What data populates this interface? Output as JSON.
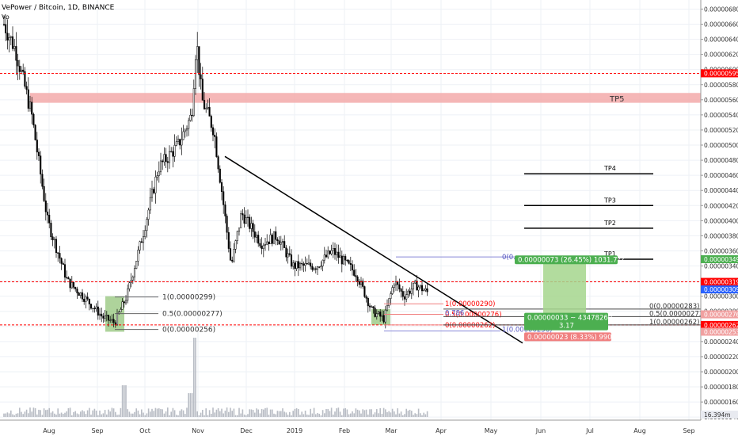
{
  "header": {
    "symbol_title": "VePower / Bitcoin, 1D, BINANCE",
    "sub": "Vo"
  },
  "chart_data": {
    "type": "candlestick",
    "title": "VePower / Bitcoin, 1D, BINANCE",
    "x_ticks": [
      "Aug",
      "Sep",
      "Oct",
      "Nov",
      "Dec",
      "2019",
      "Feb",
      "Mar",
      "Apr",
      "May",
      "Jun",
      "Jul",
      "Aug",
      "Sep"
    ],
    "y_ticks": [
      "0.00000680",
      "0.00000660",
      "0.00000640",
      "0.00000620",
      "0.00000600",
      "0.00000580",
      "0.00000560",
      "0.00000540",
      "0.00000520",
      "0.00000500",
      "0.00000480",
      "0.00000460",
      "0.00000440",
      "0.00000420",
      "0.00000400",
      "0.00000380",
      "0.00000360",
      "0.00000340",
      "0.00000320",
      "0.00000300",
      "0.00000280",
      "0.00000260",
      "0.00000240",
      "0.00000220",
      "0.00000200",
      "0.00000180",
      "0.00000160",
      "0.00000140"
    ],
    "ylim": [
      1.36e-06,
      6.92e-06
    ],
    "volume_label": "16.394m",
    "price_badges": [
      {
        "value": "0.00000595",
        "price": 5.95e-06,
        "color": "#ff0000"
      },
      {
        "value": "0.00000349",
        "price": 3.49e-06,
        "color": "#4caf50"
      },
      {
        "value": "0.00000319",
        "price": 3.19e-06,
        "color": "#ff0000"
      },
      {
        "value": "0.00000309",
        "price": 3.09e-06,
        "color": "#2962ff"
      },
      {
        "value": "0.00000276",
        "price": 2.76e-06,
        "color": "#f0a0a0"
      },
      {
        "value": "0.00000262",
        "price": 2.62e-06,
        "color": "#ff0000"
      },
      {
        "value": "0.00000253",
        "price": 2.53e-06,
        "color": "#f0a0a0"
      }
    ],
    "horizontal_levels": [
      5.95e-06,
      3.19e-06,
      2.62e-06
    ],
    "zone_label": "TP5",
    "targets": [
      "TP4",
      "TP3",
      "TP2",
      "TP1"
    ],
    "fib_left": [
      "1(0.00000299)",
      "0.5(0.00000277)",
      "0(0.00000256)"
    ],
    "fib_right": [
      "1(0.00000290)",
      "0.5(0.00000276)",
      "0(0.00000262)"
    ],
    "fib_far": [
      "0(0.00000283)",
      "0.5(0.00000273)",
      "1(0.00000262)"
    ],
    "fib_misc": [
      "0(0.",
      "0.786",
      "1(0.00000256)"
    ],
    "position_profit": "0.00000073 (26.45%) 1031.7??",
    "position_entry": "0.00000033 ~ 43478260",
    "position_ratio": "3.17",
    "position_loss": "0.00000023 (8.33%) 990"
  }
}
